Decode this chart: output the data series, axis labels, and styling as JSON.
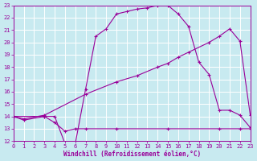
{
  "xlabel": "Windchill (Refroidissement éolien,°C)",
  "xlim": [
    0,
    23
  ],
  "ylim": [
    12,
    23
  ],
  "xticks": [
    0,
    1,
    2,
    3,
    4,
    5,
    6,
    7,
    8,
    9,
    10,
    11,
    12,
    13,
    14,
    15,
    16,
    17,
    18,
    19,
    20,
    21,
    22,
    23
  ],
  "yticks": [
    12,
    13,
    14,
    15,
    16,
    17,
    18,
    19,
    20,
    21,
    22,
    23
  ],
  "bg_color": "#c8eaf0",
  "line_color": "#990099",
  "grid_color": "#ffffff",
  "line1_x": [
    0,
    1,
    3,
    4,
    5,
    6,
    7,
    8,
    9,
    10,
    11,
    12,
    13,
    14,
    15,
    16,
    17,
    18,
    19,
    20,
    21,
    22,
    23
  ],
  "line1_y": [
    14,
    13.7,
    14,
    14,
    11.8,
    11.8,
    16.2,
    20.5,
    21.1,
    22.3,
    22.5,
    22.7,
    22.8,
    23.0,
    23.0,
    22.3,
    21.3,
    18.4,
    17.4,
    14.5,
    14.5,
    14.1,
    13.1
  ],
  "line2_x": [
    0,
    1,
    3,
    7,
    10,
    12,
    14,
    15,
    16,
    17,
    19,
    20,
    21,
    22,
    23
  ],
  "line2_y": [
    14,
    13.8,
    14.1,
    15.8,
    16.8,
    17.3,
    18.0,
    18.3,
    18.8,
    19.2,
    20.0,
    20.5,
    21.1,
    20.1,
    14.1
  ],
  "line3_x": [
    0,
    3,
    4,
    5,
    6,
    7,
    10,
    15,
    20,
    22,
    23
  ],
  "line3_y": [
    14,
    14.0,
    13.5,
    12.8,
    13.0,
    13.0,
    13.0,
    13.0,
    13.0,
    13.0,
    13.0
  ]
}
